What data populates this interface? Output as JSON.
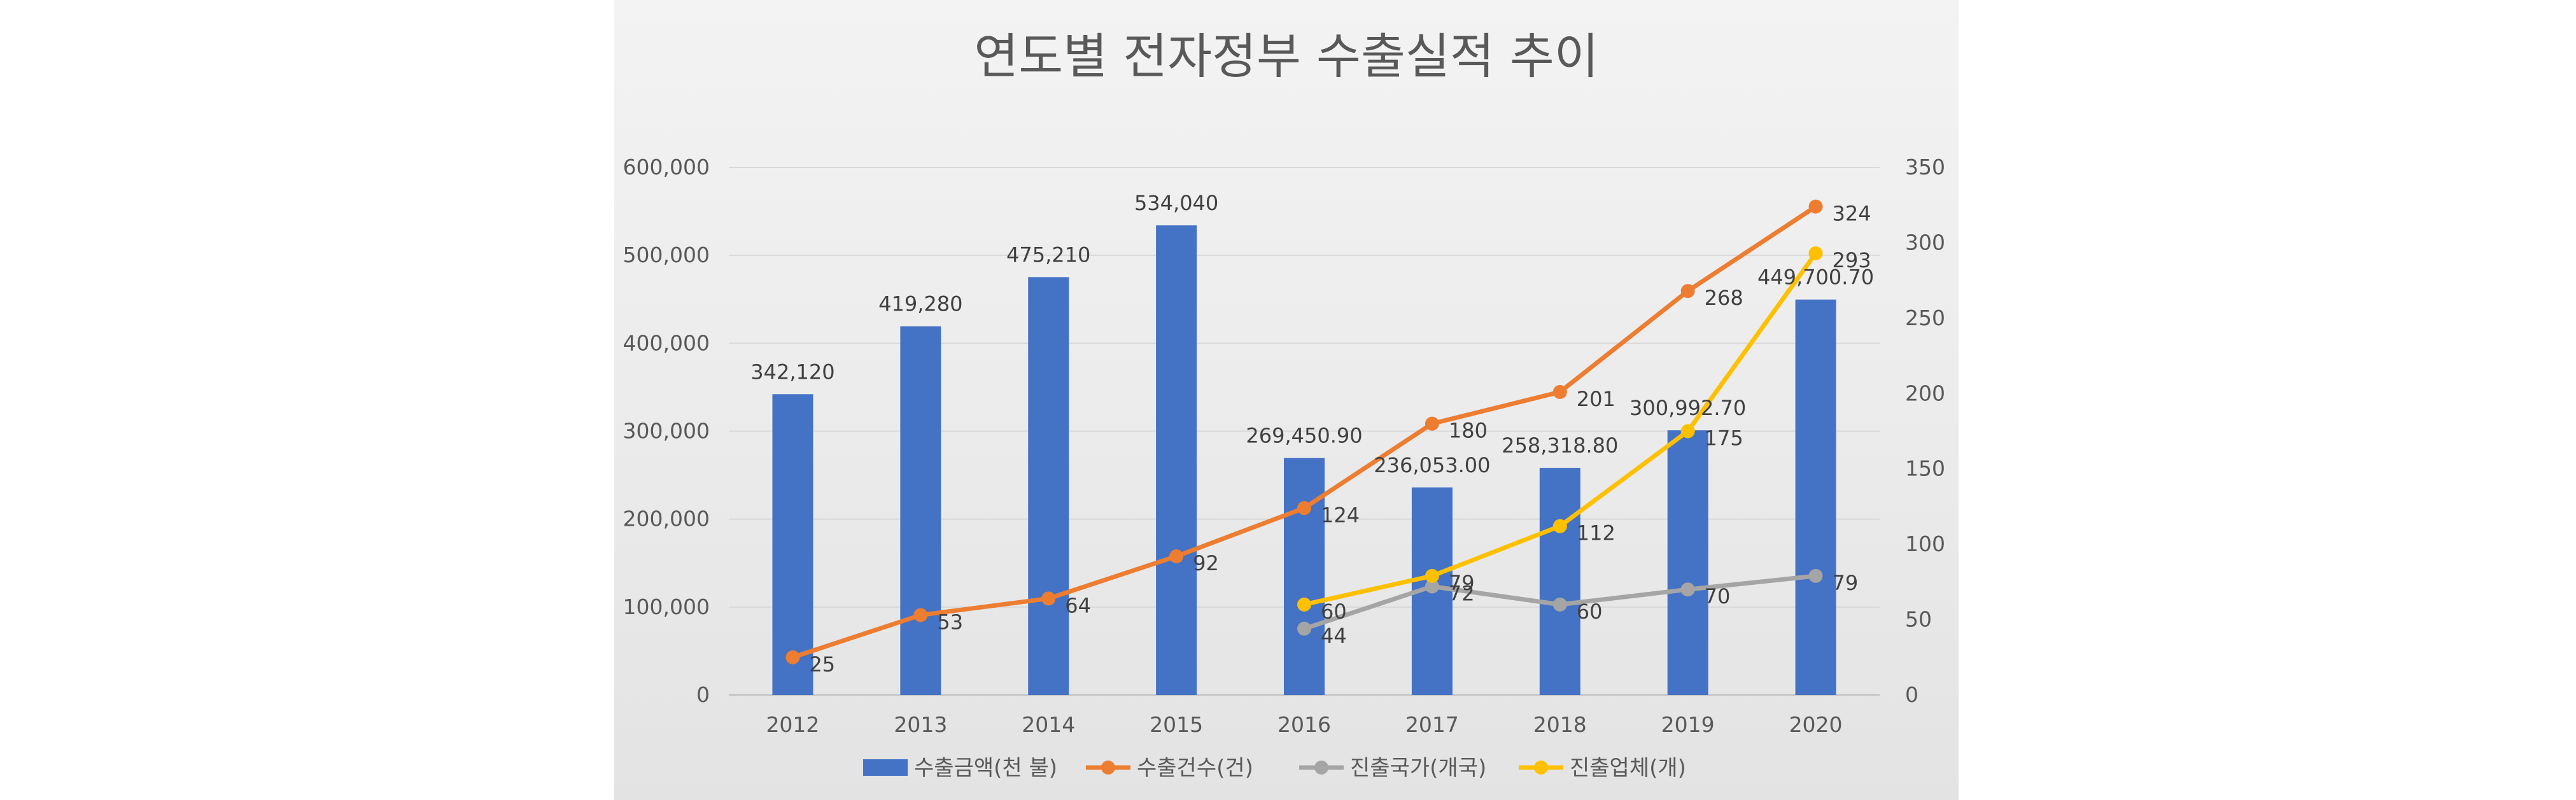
{
  "chart_data": {
    "type": "bar",
    "title": "연도별 전자정부 수출실적 추이",
    "categories": [
      "2012",
      "2013",
      "2014",
      "2015",
      "2016",
      "2017",
      "2018",
      "2019",
      "2020"
    ],
    "y_left": {
      "min": 0,
      "max": 600000,
      "ticks": [
        0,
        100000,
        200000,
        300000,
        400000,
        500000,
        600000
      ],
      "tick_labels": [
        "0",
        "100,000",
        "200,000",
        "300,000",
        "400,000",
        "500,000",
        "600,000"
      ]
    },
    "y_right": {
      "min": 0,
      "max": 350,
      "ticks": [
        0,
        50,
        100,
        150,
        200,
        250,
        300,
        350
      ],
      "tick_labels": [
        "0",
        "50",
        "100",
        "150",
        "200",
        "250",
        "300",
        "350"
      ]
    },
    "grid": true,
    "legend_position": "bottom",
    "series": [
      {
        "name": "수출금액(천 불)",
        "type": "bar",
        "axis": "left",
        "color": "#4472C4",
        "values": [
          342120,
          419280,
          475210,
          534040,
          269450.9,
          236053.0,
          258318.8,
          300992.7,
          449700.7
        ],
        "labels": [
          "342,120",
          "419,280",
          "475,210",
          "534,040",
          "269,450.90",
          "236,053.00",
          "258,318.80",
          "300,992.70",
          "449,700.70"
        ]
      },
      {
        "name": "수출건수(건)",
        "type": "line",
        "axis": "right",
        "color": "#ED7D31",
        "values": [
          25,
          53,
          64,
          92,
          124,
          180,
          201,
          268,
          324
        ],
        "labels": [
          "25",
          "53",
          "64",
          "92",
          "124",
          "180",
          "201",
          "268",
          "324"
        ]
      },
      {
        "name": "진출국가(개국)",
        "type": "line",
        "axis": "right",
        "color": "#A5A5A5",
        "values": [
          null,
          null,
          null,
          null,
          44,
          72,
          60,
          70,
          79
        ],
        "labels": [
          "",
          "",
          "",
          "",
          "44",
          "72",
          "60",
          "70",
          "79"
        ]
      },
      {
        "name": "진출업체(개)",
        "type": "line",
        "axis": "right",
        "color": "#FFC000",
        "values": [
          null,
          null,
          null,
          null,
          60,
          79,
          112,
          175,
          293
        ],
        "labels": [
          "",
          "",
          "",
          "",
          "60",
          "79",
          "112",
          "175",
          "293"
        ]
      }
    ]
  }
}
